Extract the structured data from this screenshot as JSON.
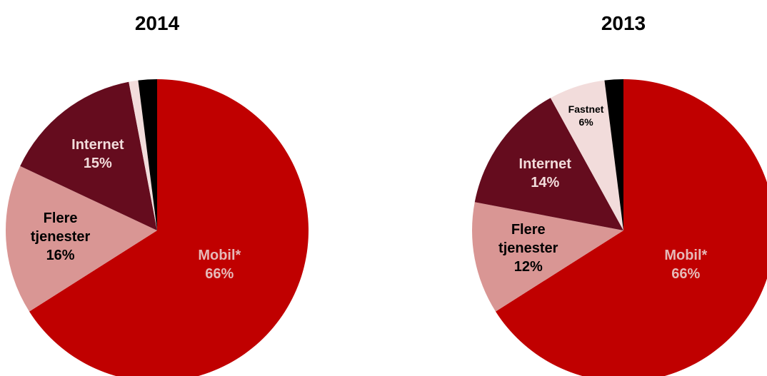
{
  "chart_data": [
    {
      "type": "pie",
      "title": "2014",
      "categories": [
        "Mobil*",
        "Flere tjenester",
        "Internet",
        null,
        null
      ],
      "values": [
        66,
        16,
        15,
        1,
        2
      ],
      "value_labels": [
        "66%",
        "16%",
        "15%",
        null,
        null
      ],
      "colors": [
        "#c00000",
        "#d99694",
        "#650c1e",
        "#f2dcdb",
        "#000000"
      ],
      "label_colors": [
        "#e6b9b8",
        "#000000",
        "#f2dcdb",
        "#000000",
        "#000000"
      ]
    },
    {
      "type": "pie",
      "title": "2013",
      "categories": [
        "Mobil*",
        "Flere tjenester",
        "Internet",
        "Fastnet",
        null
      ],
      "values": [
        66,
        12,
        14,
        6,
        2
      ],
      "value_labels": [
        "66%",
        "12%",
        "14%",
        "6%",
        null
      ],
      "colors": [
        "#c00000",
        "#d99694",
        "#650c1e",
        "#f2dcdb",
        "#000000"
      ],
      "label_colors": [
        "#e6b9b8",
        "#000000",
        "#f2dcdb",
        "#000000",
        "#000000"
      ]
    }
  ]
}
